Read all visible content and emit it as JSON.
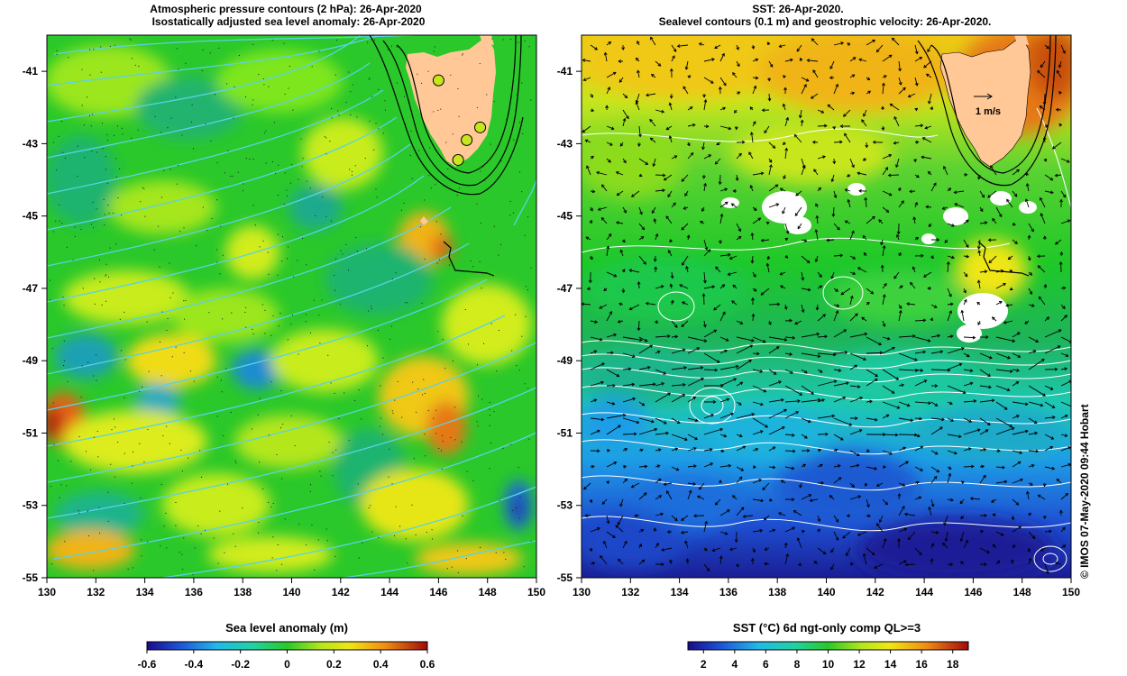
{
  "left_panel": {
    "title_line1": "Atmospheric pressure contours (2 hPa): 26-Apr-2020",
    "title_line2": "Isostatically adjusted sea level anomaly: 26-Apr-2020",
    "lon_range": [
      130,
      150
    ],
    "lat_range": [
      -55,
      -40
    ],
    "x_ticks": [
      "130",
      "132",
      "134",
      "136",
      "138",
      "140",
      "142",
      "144",
      "146",
      "148",
      "150"
    ],
    "y_ticks": [
      "-41",
      "-43",
      "-45",
      "-47",
      "-49",
      "-51",
      "-53",
      "-55"
    ],
    "stations": [
      {
        "lon": 146.0,
        "lat": -41.25
      },
      {
        "lon": 147.7,
        "lat": -42.55
      },
      {
        "lon": 147.15,
        "lat": -42.9
      },
      {
        "lon": 146.8,
        "lat": -43.45
      }
    ]
  },
  "right_panel": {
    "title_line1": "SST: 26-Apr-2020.",
    "title_line2": "Sealevel contours (0.1 m) and geostrophic velocity: 26-Apr-2020.",
    "lon_range": [
      130,
      150
    ],
    "lat_range": [
      -55,
      -40
    ],
    "x_ticks": [
      "130",
      "132",
      "134",
      "136",
      "138",
      "140",
      "142",
      "144",
      "146",
      "148",
      "150"
    ],
    "y_ticks": [
      "-41",
      "-43",
      "-45",
      "-47",
      "-49",
      "-51",
      "-53",
      "-55"
    ],
    "velocity_scale_label": "1 m/s"
  },
  "colorbars": {
    "sla": {
      "label": "Sea level anomaly (m)",
      "ticks": [
        "-0.6",
        "-0.4",
        "-0.2",
        "0",
        "0.2",
        "0.4",
        "0.6"
      ],
      "range": [
        -0.6,
        0.6
      ]
    },
    "sst": {
      "label": "SST (°C) 6d ngt-only comp QL>=3",
      "ticks": [
        "2",
        "4",
        "6",
        "8",
        "10",
        "12",
        "14",
        "16",
        "18"
      ],
      "range": [
        1,
        19
      ]
    }
  },
  "credit": "© IMOS 07-May-2020 09:44 Hobart",
  "colors": {
    "land": "#ffc896",
    "pressure_contour": "#5ad2e6",
    "sealevel_contour": "#ffffff",
    "isobath": "#000000",
    "ocean_background": "#22c22a"
  }
}
